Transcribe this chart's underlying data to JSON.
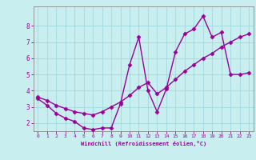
{
  "xlabel": "Windchill (Refroidissement éolien,°C)",
  "bg_color": "#c8eef0",
  "grid_color": "#a0d8dc",
  "line_color": "#990099",
  "marker": "D",
  "markersize": 2.5,
  "linewidth": 1.0,
  "xlim": [
    -0.5,
    23.5
  ],
  "ylim": [
    1.5,
    9.2
  ],
  "yticks": [
    2,
    3,
    4,
    5,
    6,
    7,
    8
  ],
  "xticks": [
    0,
    1,
    2,
    3,
    4,
    5,
    6,
    7,
    8,
    9,
    10,
    11,
    12,
    13,
    14,
    15,
    16,
    17,
    18,
    19,
    20,
    21,
    22,
    23
  ],
  "series1_x": [
    0,
    1,
    2,
    3,
    4,
    5,
    6,
    7,
    8,
    9,
    10,
    11,
    12,
    13,
    14,
    15,
    16,
    17,
    18,
    19,
    20,
    21,
    22,
    23
  ],
  "series1_y": [
    3.5,
    3.1,
    2.6,
    2.3,
    2.1,
    1.7,
    1.6,
    1.7,
    1.7,
    3.2,
    5.6,
    7.3,
    4.0,
    2.7,
    4.1,
    6.4,
    7.5,
    7.8,
    8.6,
    7.3,
    7.6,
    5.0,
    5.0,
    5.1
  ],
  "series2_x": [
    0,
    1,
    2,
    3,
    4,
    5,
    6,
    7,
    8,
    9,
    10,
    11,
    12,
    13,
    14,
    15,
    16,
    17,
    18,
    19,
    20,
    21,
    22,
    23
  ],
  "series2_y": [
    3.6,
    3.4,
    3.1,
    2.9,
    2.7,
    2.6,
    2.5,
    2.7,
    3.0,
    3.3,
    3.7,
    4.2,
    4.5,
    3.8,
    4.2,
    4.7,
    5.2,
    5.6,
    6.0,
    6.3,
    6.7,
    7.0,
    7.3,
    7.5
  ]
}
